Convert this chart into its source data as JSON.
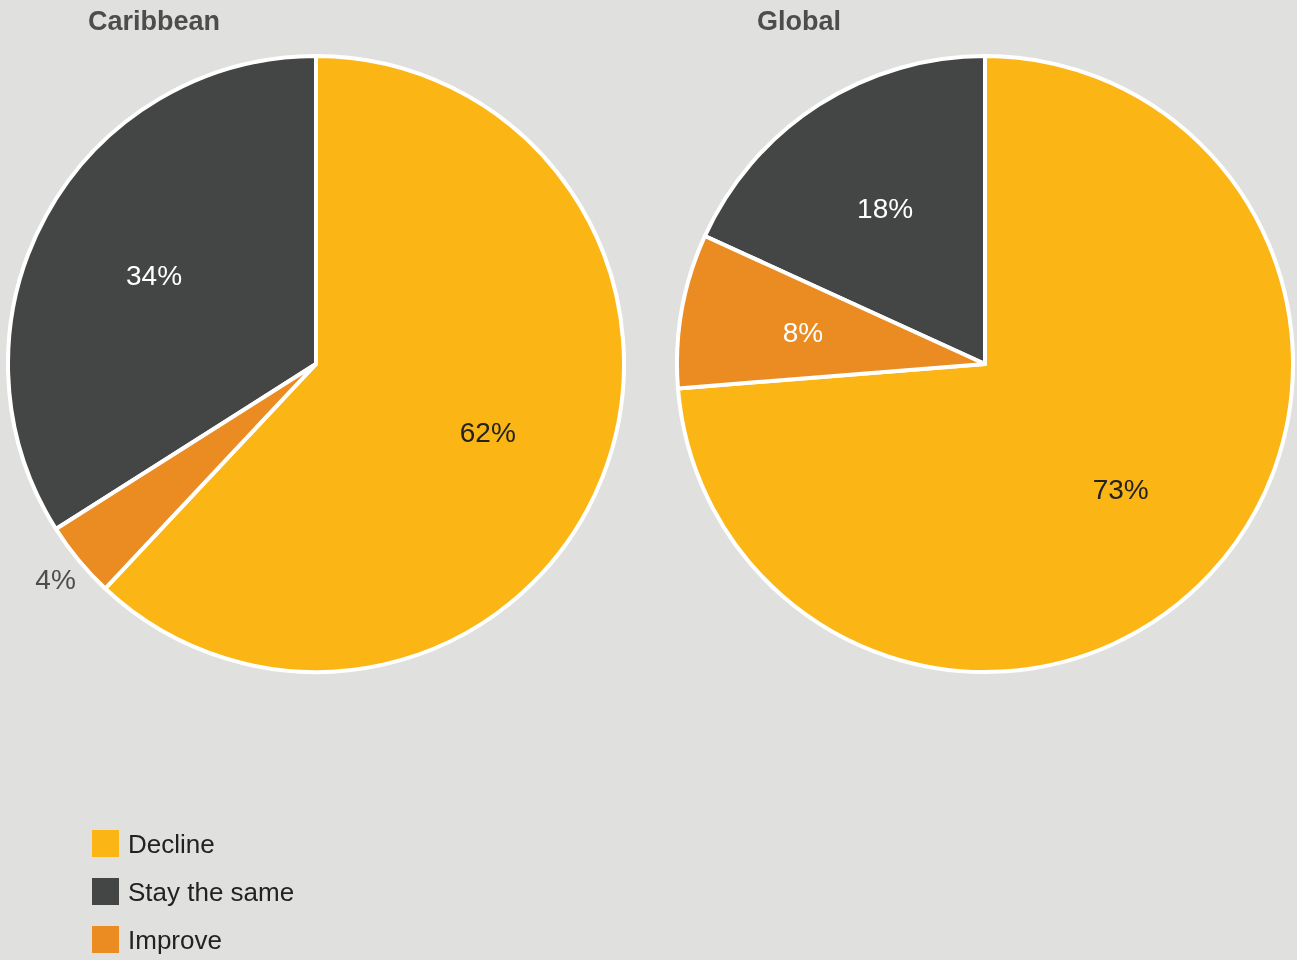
{
  "chart_data": [
    {
      "type": "pie",
      "title": "Caribbean",
      "categories": [
        "Decline",
        "Stay the same",
        "Improve"
      ],
      "values": [
        62,
        34,
        4
      ],
      "colors": [
        "#fbb616",
        "#444545",
        "#ea8c22"
      ],
      "value_labels": [
        "62%",
        "34%",
        "4%"
      ],
      "legend": "bottom left"
    },
    {
      "type": "pie",
      "title": "Global",
      "categories": [
        null,
        null,
        null
      ],
      "values": [
        73,
        18,
        8
      ],
      "colors": [
        "#fbb616",
        "#444545",
        "#ea8c22"
      ],
      "value_labels": [
        "73%",
        "18%",
        "8%"
      ]
    }
  ]
}
